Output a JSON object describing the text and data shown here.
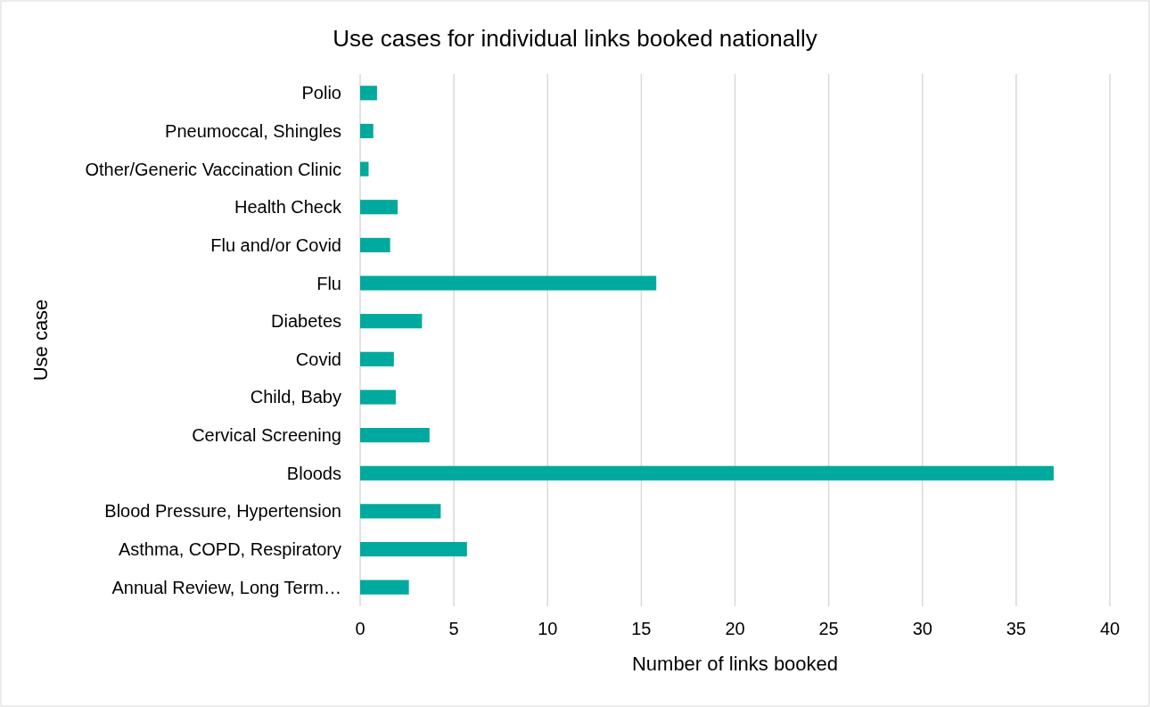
{
  "chart_data": {
    "type": "bar",
    "orientation": "horizontal",
    "title": "Use cases for individual links booked nationally",
    "xlabel": "Number of links booked",
    "ylabel": "Use case",
    "categories": [
      "Polio",
      "Pneumoccal, Shingles",
      "Other/Generic Vaccination Clinic",
      "Health Check",
      "Flu and/or Covid",
      "Flu",
      "Diabetes",
      "Covid",
      "Child, Baby",
      "Cervical Screening",
      "Bloods",
      "Blood Pressure, Hypertension",
      "Asthma, COPD, Respiratory",
      "Annual Review, Long Term…"
    ],
    "values": [
      0.9,
      0.7,
      0.45,
      2.0,
      1.6,
      15.8,
      3.3,
      1.8,
      1.9,
      3.7,
      37,
      4.3,
      5.7,
      2.6
    ],
    "color": "#00a99d",
    "xlim": [
      0,
      40
    ],
    "xticks": [
      0,
      5,
      10,
      15,
      20,
      25,
      30,
      35,
      40
    ],
    "grid": "x"
  }
}
